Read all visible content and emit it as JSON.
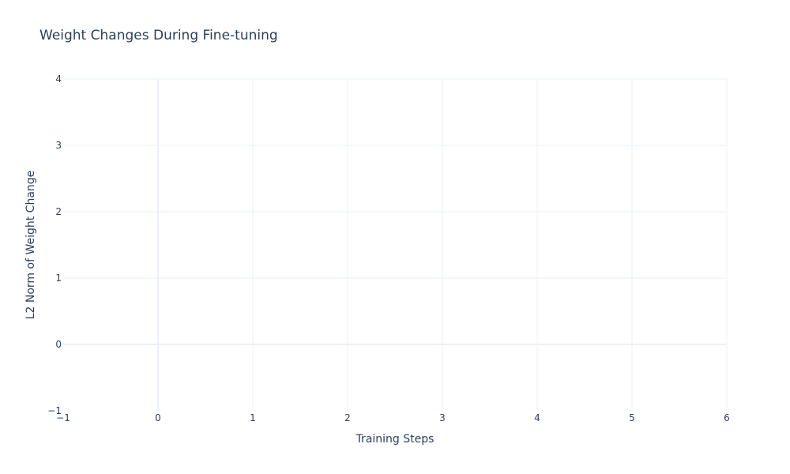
{
  "chart_data": {
    "type": "line",
    "title": "Weight Changes During Fine-tuning",
    "xlabel": "Training Steps",
    "ylabel": "L2 Norm of Weight Change",
    "xlim": [
      -1,
      6
    ],
    "ylim": [
      -1,
      4
    ],
    "x_ticks": [
      -1,
      0,
      1,
      2,
      3,
      4,
      5,
      6
    ],
    "x_tick_labels": [
      "−1",
      "0",
      "1",
      "2",
      "3",
      "4",
      "5",
      "6"
    ],
    "y_ticks": [
      -1,
      0,
      1,
      2,
      3,
      4
    ],
    "y_tick_labels": [
      "−1",
      "0",
      "1",
      "2",
      "3",
      "4"
    ],
    "grid": true,
    "series": [],
    "colors": {
      "text": "#2a3f5f",
      "grid": "#ebf0f8",
      "background": "#ffffff"
    }
  }
}
